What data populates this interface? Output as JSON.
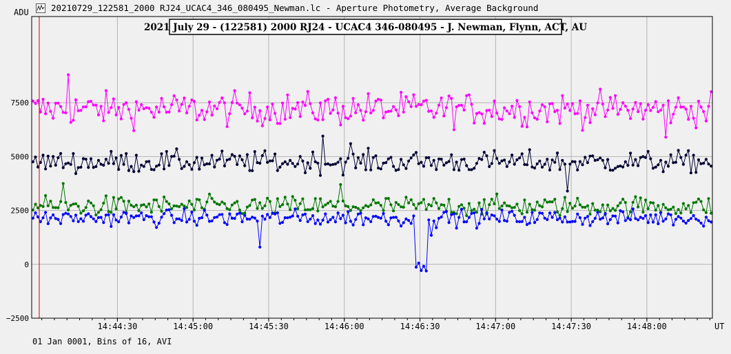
{
  "window": {
    "title": "20210729_122581_2000 RJ24_UCAC4_346_080495_Newman.lc - Aperture Photometry, Average Background",
    "icon": "lightcurve-icon"
  },
  "footer": {
    "status": "01 Jan 0001, Bins of 16, AVI"
  },
  "chart_data": {
    "type": "scatter",
    "title": "2021 July 29 - (122581) 2000 RJ24 - UCAC4 346-080495 - J. Newman, Flynn, ACT, AU",
    "ylabel": "ADU",
    "xlabel": "UT",
    "ylim": [
      -2500,
      11500
    ],
    "xlim": [
      "14:43:56",
      "14:48:26"
    ],
    "yticks": [
      -2500,
      0,
      2500,
      5000,
      7500
    ],
    "ytick_labels": [
      "−2500",
      "0",
      "2500",
      "5000",
      "7500"
    ],
    "xticks": [
      "14:44:30",
      "14:45:00",
      "14:45:30",
      "14:46:00",
      "14:46:30",
      "14:47:00",
      "14:47:30",
      "14:48:00"
    ],
    "grid": true,
    "marker_line": {
      "x": "14:43:59",
      "color": "#cc0000"
    },
    "series": [
      {
        "color": "#ff00ff",
        "mean": 7200,
        "spread": 500,
        "count": 270,
        "notable": [
          {
            "x": "14:44:10",
            "y": 8800
          },
          {
            "x": "14:48:07",
            "y": 5900
          }
        ]
      },
      {
        "color": "#000033",
        "mean": 4750,
        "spread": 330,
        "count": 270,
        "notable": [
          {
            "x": "14:45:51",
            "y": 5950
          },
          {
            "x": "14:46:02",
            "y": 5600
          },
          {
            "x": "14:47:28",
            "y": 3400
          }
        ]
      },
      {
        "color": "#007700",
        "mean": 2700,
        "spread": 300,
        "count": 270,
        "notable": [
          {
            "x": "14:44:08",
            "y": 3750
          },
          {
            "x": "14:45:58",
            "y": 3700
          }
        ]
      },
      {
        "color": "#0000ff",
        "mean": 2150,
        "spread": 250,
        "count": 270,
        "notable": [
          {
            "x": "14:45:26",
            "y": 800
          },
          {
            "x": "14:46:34",
            "y": 1350
          }
        ],
        "occultation": {
          "start": "14:46:28",
          "end": "14:46:33",
          "level": -100
        }
      }
    ]
  },
  "colors": {
    "plot_bg": "#f0f0f0",
    "grid": "#b4b4b4",
    "axis": "#000000"
  }
}
